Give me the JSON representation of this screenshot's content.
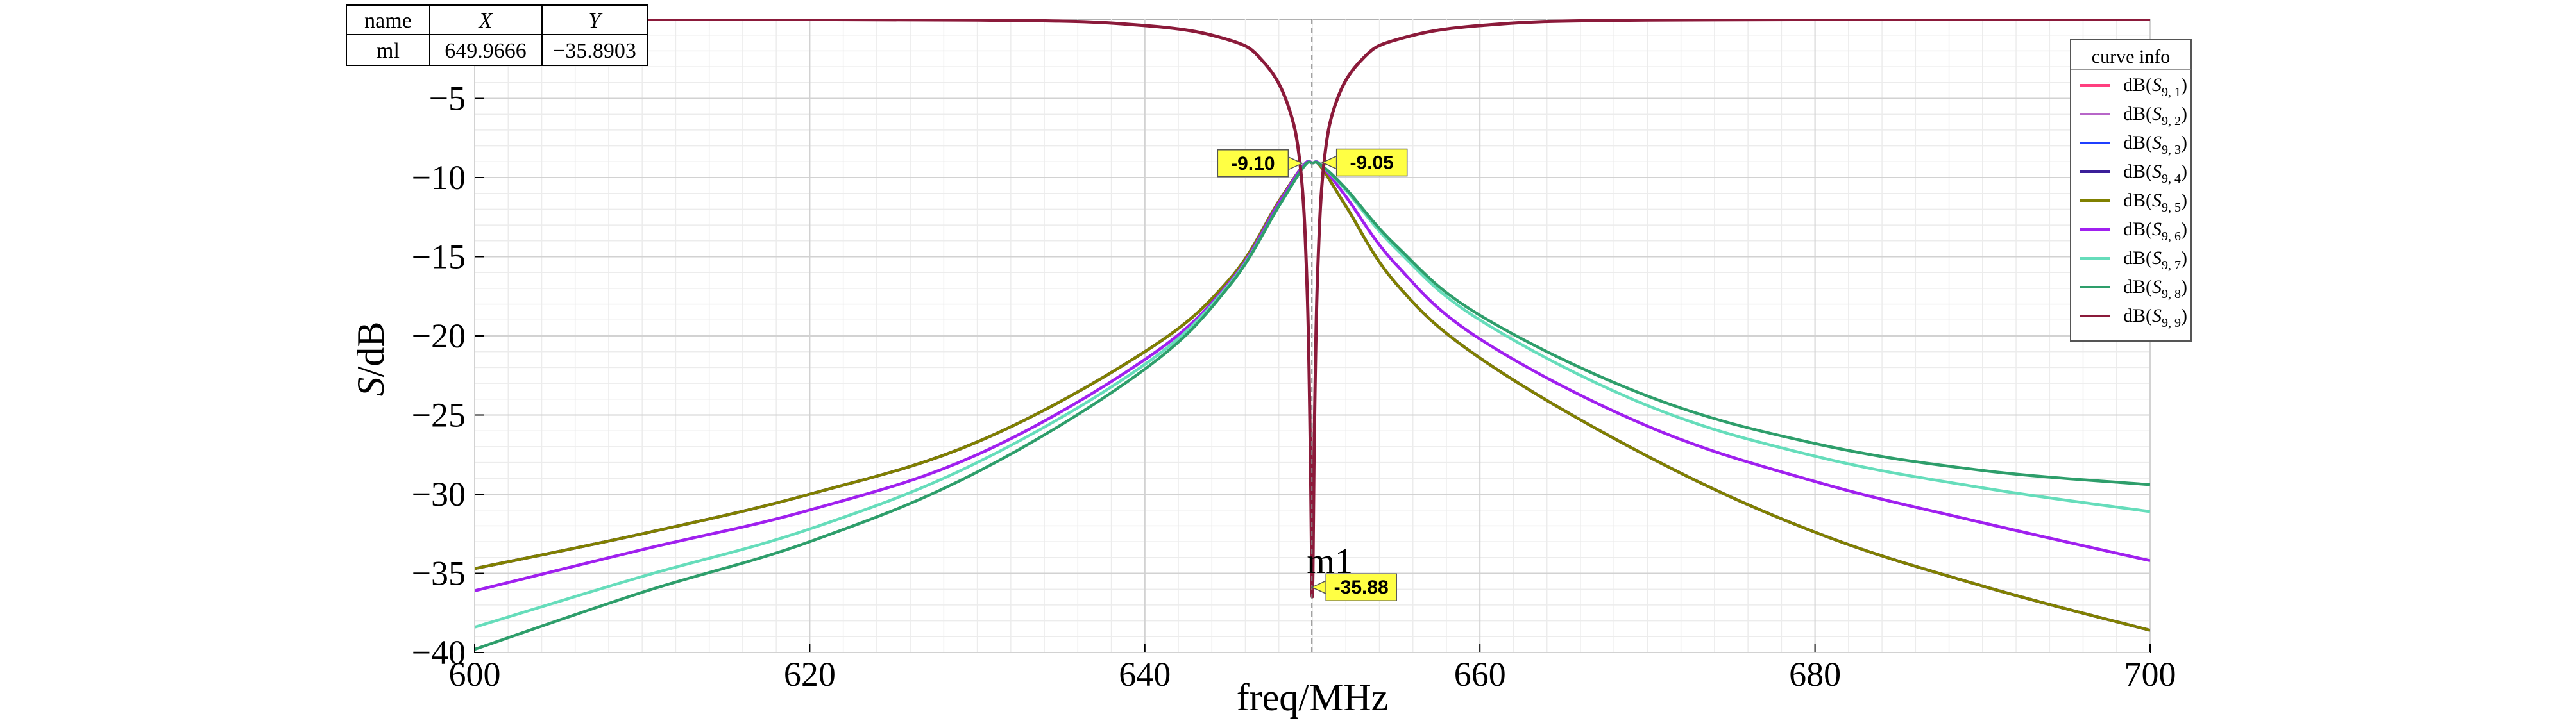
{
  "chart_data": {
    "type": "line",
    "xlabel": "freq/MHz",
    "ylabel_italic": "S",
    "ylabel_rest": "/dB",
    "xlim": [
      600,
      700
    ],
    "ylim": [
      -40,
      0
    ],
    "x_ticks": [
      600,
      620,
      640,
      660,
      680,
      700
    ],
    "y_ticks": [
      -5,
      -10,
      -15,
      -20,
      -25,
      -30,
      -35,
      -40
    ],
    "y_tick_labels": [
      "−5",
      "−10",
      "−15",
      "−20",
      "−25",
      "−30",
      "−35",
      "−40"
    ],
    "grid": true,
    "legend_title": "curve info",
    "legend_position": "top-right",
    "series": [
      {
        "name": "dB(S9,1)",
        "sub": "9, 1",
        "color": "#ff3f7f",
        "shape": "flat",
        "points": [
          [
            600,
            -34.7
          ],
          [
            610,
            -32.5
          ],
          [
            620,
            -30.0
          ],
          [
            630,
            -26.7
          ],
          [
            640,
            -21.0
          ],
          [
            645,
            -16.5
          ],
          [
            648,
            -11.5
          ],
          [
            649.5,
            -9.2
          ],
          [
            650,
            -9.08
          ],
          [
            650.5,
            -9.3
          ],
          [
            652,
            -11.8
          ],
          [
            655,
            -16.7
          ],
          [
            660,
            -21.4
          ],
          [
            670,
            -27.6
          ],
          [
            680,
            -32.4
          ],
          [
            690,
            -35.8
          ],
          [
            700,
            -38.6
          ]
        ]
      },
      {
        "name": "dB(S9,2)",
        "sub": "9, 2",
        "color": "#b766c8",
        "shape": "flat",
        "points": [
          [
            600,
            -36.1
          ],
          [
            610,
            -33.5
          ],
          [
            620,
            -31.0
          ],
          [
            630,
            -27.5
          ],
          [
            640,
            -21.5
          ],
          [
            645,
            -16.7
          ],
          [
            648,
            -11.6
          ],
          [
            649.5,
            -9.2
          ],
          [
            650,
            -9.08
          ],
          [
            650.5,
            -9.2
          ],
          [
            652,
            -11.2
          ],
          [
            655,
            -15.5
          ],
          [
            660,
            -20.2
          ],
          [
            670,
            -25.7
          ],
          [
            680,
            -29.2
          ],
          [
            690,
            -31.8
          ],
          [
            700,
            -34.2
          ]
        ]
      },
      {
        "name": "dB(S9,3)",
        "sub": "9, 3",
        "color": "#1f3fff",
        "shape": "flat",
        "points": [
          [
            600,
            -34.7
          ],
          [
            610,
            -32.5
          ],
          [
            620,
            -30.0
          ],
          [
            630,
            -26.7
          ],
          [
            640,
            -21.0
          ],
          [
            645,
            -16.5
          ],
          [
            648,
            -11.5
          ],
          [
            649.5,
            -9.2
          ],
          [
            650,
            -9.08
          ],
          [
            650.5,
            -9.3
          ],
          [
            652,
            -11.8
          ],
          [
            655,
            -16.7
          ],
          [
            660,
            -21.4
          ],
          [
            670,
            -27.6
          ],
          [
            680,
            -32.4
          ],
          [
            690,
            -35.8
          ],
          [
            700,
            -38.6
          ]
        ]
      },
      {
        "name": "dB(S9,4)",
        "sub": "9, 4",
        "color": "#3b1f99",
        "shape": "flat",
        "points": [
          [
            600,
            -34.7
          ],
          [
            610,
            -32.5
          ],
          [
            620,
            -30.0
          ],
          [
            630,
            -26.7
          ],
          [
            640,
            -21.0
          ],
          [
            645,
            -16.5
          ],
          [
            648,
            -11.5
          ],
          [
            649.5,
            -9.2
          ],
          [
            650,
            -9.08
          ],
          [
            650.5,
            -9.3
          ],
          [
            652,
            -11.8
          ],
          [
            655,
            -16.7
          ],
          [
            660,
            -21.4
          ],
          [
            670,
            -27.6
          ],
          [
            680,
            -32.4
          ],
          [
            690,
            -35.8
          ],
          [
            700,
            -38.6
          ]
        ]
      },
      {
        "name": "dB(S9,5)",
        "sub": "9, 5",
        "color": "#808000",
        "shape": "flat",
        "points": [
          [
            600,
            -34.7
          ],
          [
            610,
            -32.5
          ],
          [
            620,
            -30.0
          ],
          [
            630,
            -26.7
          ],
          [
            640,
            -21.0
          ],
          [
            645,
            -16.5
          ],
          [
            648,
            -11.5
          ],
          [
            649.5,
            -9.2
          ],
          [
            650,
            -9.08
          ],
          [
            650.5,
            -9.3
          ],
          [
            652,
            -11.8
          ],
          [
            655,
            -16.7
          ],
          [
            660,
            -21.4
          ],
          [
            670,
            -27.6
          ],
          [
            680,
            -32.4
          ],
          [
            690,
            -35.8
          ],
          [
            700,
            -38.6
          ]
        ]
      },
      {
        "name": "dB(S9,6)",
        "sub": "9, 6",
        "color": "#a020f0",
        "shape": "flat",
        "points": [
          [
            600,
            -36.1
          ],
          [
            610,
            -33.5
          ],
          [
            620,
            -31.0
          ],
          [
            630,
            -27.5
          ],
          [
            640,
            -21.5
          ],
          [
            645,
            -16.7
          ],
          [
            648,
            -11.6
          ],
          [
            649.5,
            -9.2
          ],
          [
            650,
            -9.08
          ],
          [
            650.5,
            -9.2
          ],
          [
            652,
            -11.2
          ],
          [
            655,
            -15.5
          ],
          [
            660,
            -20.2
          ],
          [
            670,
            -25.7
          ],
          [
            680,
            -29.2
          ],
          [
            690,
            -31.8
          ],
          [
            700,
            -34.2
          ]
        ]
      },
      {
        "name": "dB(S9,7)",
        "sub": "9, 7",
        "color": "#66ddbb",
        "shape": "flat",
        "points": [
          [
            600,
            -38.4
          ],
          [
            610,
            -35.2
          ],
          [
            620,
            -32.2
          ],
          [
            630,
            -28.0
          ],
          [
            640,
            -21.8
          ],
          [
            645,
            -16.8
          ],
          [
            648,
            -11.8
          ],
          [
            649.5,
            -9.3
          ],
          [
            650,
            -9.08
          ],
          [
            650.5,
            -9.2
          ],
          [
            652,
            -10.8
          ],
          [
            655,
            -14.5
          ],
          [
            660,
            -19.0
          ],
          [
            670,
            -24.4
          ],
          [
            680,
            -27.6
          ],
          [
            690,
            -29.6
          ],
          [
            700,
            -31.1
          ]
        ]
      },
      {
        "name": "dB(S9,8)",
        "sub": "9, 8",
        "color": "#2e9e6b",
        "shape": "flat",
        "points": [
          [
            600,
            -39.8
          ],
          [
            610,
            -36.2
          ],
          [
            620,
            -33.0
          ],
          [
            630,
            -28.6
          ],
          [
            640,
            -22.1
          ],
          [
            645,
            -16.9
          ],
          [
            648,
            -11.8
          ],
          [
            649.5,
            -9.3
          ],
          [
            650,
            -9.08
          ],
          [
            650.5,
            -9.2
          ],
          [
            652,
            -10.7
          ],
          [
            655,
            -14.3
          ],
          [
            660,
            -18.7
          ],
          [
            670,
            -23.8
          ],
          [
            680,
            -26.8
          ],
          [
            690,
            -28.5
          ],
          [
            700,
            -29.4
          ]
        ]
      },
      {
        "name": "dB(S9,9)",
        "sub": "9, 9",
        "color": "#8b1a3a",
        "shape": "notch",
        "points": [
          [
            600,
            0.0
          ],
          [
            630,
            -0.05
          ],
          [
            640,
            -0.4
          ],
          [
            645,
            -1.3
          ],
          [
            647,
            -2.6
          ],
          [
            648.5,
            -5.3
          ],
          [
            649.3,
            -9.5
          ],
          [
            649.7,
            -17.5
          ],
          [
            649.9,
            -29.0
          ],
          [
            649.97,
            -35.89
          ],
          [
            650.03,
            -35.0
          ],
          [
            650.1,
            -27.5
          ],
          [
            650.3,
            -16.5
          ],
          [
            650.7,
            -9.0
          ],
          [
            651.5,
            -5.0
          ],
          [
            653,
            -2.5
          ],
          [
            655,
            -1.3
          ],
          [
            660,
            -0.4
          ],
          [
            670,
            -0.05
          ],
          [
            700,
            0.0
          ]
        ]
      }
    ],
    "markers": [
      {
        "name": "m1",
        "label": "-35.88",
        "x": 649.97,
        "y": -35.88
      },
      {
        "name": "",
        "label": "-9.10",
        "x": 649.4,
        "y": -9.1
      },
      {
        "name": "",
        "label": "-9.05",
        "x": 650.6,
        "y": -9.05
      }
    ]
  },
  "marker_table": {
    "headers": [
      "name",
      "X",
      "Y"
    ],
    "row": [
      "ml",
      "649.9666",
      "−35.8903"
    ]
  }
}
